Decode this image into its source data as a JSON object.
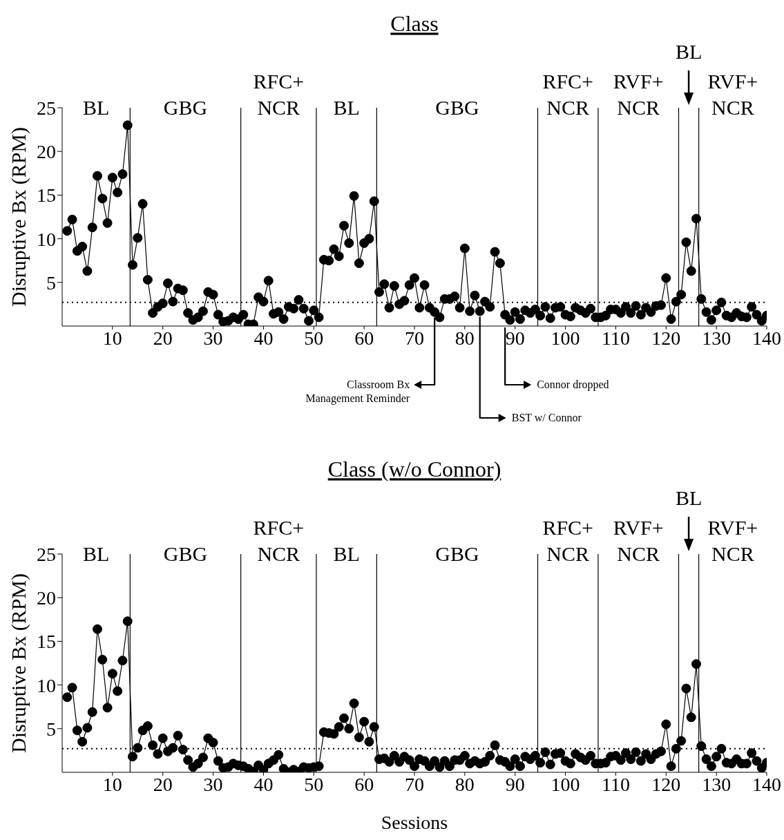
{
  "chart_data": [
    {
      "type": "line",
      "title": "Class",
      "ylabel": "Disruptive Bx (RPM)",
      "marker": "circle",
      "x": [
        1,
        2,
        3,
        4,
        5,
        6,
        7,
        8,
        9,
        10,
        11,
        12,
        13,
        14,
        15,
        16,
        17,
        18,
        19,
        20,
        21,
        22,
        23,
        24,
        25,
        26,
        27,
        28,
        29,
        30,
        31,
        32,
        33,
        34,
        35,
        36,
        37,
        38,
        39,
        40,
        41,
        42,
        43,
        44,
        45,
        46,
        47,
        48,
        49,
        50,
        51,
        52,
        53,
        54,
        55,
        56,
        57,
        58,
        59,
        60,
        61,
        62,
        63,
        64,
        65,
        66,
        67,
        68,
        69,
        70,
        71,
        72,
        73,
        74,
        75,
        76,
        77,
        78,
        79,
        80,
        81,
        82,
        83,
        84,
        85,
        86,
        87,
        88,
        89,
        90,
        91,
        92,
        93,
        94,
        95,
        96,
        97,
        98,
        99,
        100,
        101,
        102,
        103,
        104,
        105,
        106,
        107,
        108,
        109,
        110,
        111,
        112,
        113,
        114,
        115,
        116,
        117,
        118,
        119,
        120,
        121,
        122,
        123,
        124,
        125,
        126,
        127,
        128,
        129,
        130,
        131,
        132,
        133,
        134,
        135,
        136,
        137,
        138,
        139,
        140
      ],
      "series": [
        {
          "color": "#000000",
          "values": [
            10.9,
            12.2,
            8.6,
            9.1,
            6.3,
            11.3,
            17.2,
            14.6,
            11.8,
            17.0,
            15.3,
            17.4,
            23.0,
            7.0,
            10.1,
            14.0,
            5.3,
            1.5,
            2.2,
            2.6,
            4.9,
            2.8,
            4.3,
            4.1,
            1.5,
            0.7,
            1.0,
            1.7,
            3.9,
            3.6,
            1.3,
            0.5,
            0.6,
            1.0,
            0.8,
            1.3,
            0.2,
            0.2,
            3.3,
            2.8,
            5.2,
            1.4,
            1.6,
            0.8,
            2.2,
            2.0,
            3.0,
            2.0,
            0.6,
            1.8,
            1.0,
            7.6,
            7.5,
            8.8,
            8.0,
            11.5,
            9.5,
            14.9,
            7.2,
            9.5,
            10.0,
            14.3,
            3.9,
            4.8,
            2.1,
            4.6,
            2.5,
            2.9,
            4.7,
            5.5,
            2.1,
            4.7,
            2.1,
            1.6,
            1.0,
            3.1,
            3.1,
            3.4,
            2.1,
            8.9,
            1.7,
            3.5,
            1.7,
            2.8,
            2.2,
            8.5,
            7.2,
            1.3,
            0.7,
            1.6,
            0.8,
            1.8,
            1.5,
            1.9,
            1.2,
            2.2,
            0.9,
            2.1,
            2.2,
            1.3,
            1.1,
            2.1,
            1.8,
            1.5,
            2.0,
            1.0,
            1.0,
            1.2,
            1.9,
            1.9,
            1.5,
            2.2,
            1.5,
            2.3,
            1.3,
            2.1,
            1.6,
            2.3,
            2.4,
            5.5,
            0.8,
            2.8,
            3.6,
            9.6,
            6.3,
            12.3,
            3.1,
            1.6,
            0.7,
            1.8,
            2.7,
            1.2,
            1.0,
            1.5,
            1.1,
            1.0,
            2.2,
            1.3,
            0.6,
            1.2
          ]
        }
      ],
      "xlim": [
        0,
        140
      ],
      "xticks": [
        10,
        20,
        30,
        40,
        50,
        60,
        70,
        80,
        90,
        100,
        110,
        120,
        130,
        140
      ],
      "ylim": [
        0,
        25
      ],
      "yticks": [
        5,
        10,
        15,
        20,
        25
      ],
      "ref_lines": [
        {
          "axis": "x",
          "value": 13.5,
          "color": "#000000"
        },
        {
          "axis": "x",
          "value": 35.5,
          "color": "#000000"
        },
        {
          "axis": "x",
          "value": 50.5,
          "color": "#000000"
        },
        {
          "axis": "x",
          "value": 62.5,
          "color": "#000000"
        },
        {
          "axis": "x",
          "value": 94.5,
          "color": "#000000"
        },
        {
          "axis": "x",
          "value": 106.5,
          "color": "#000000"
        },
        {
          "axis": "x",
          "value": 122.5,
          "color": "#000000"
        },
        {
          "axis": "x",
          "value": 126.5,
          "color": "#000000"
        },
        {
          "axis": "y",
          "value": 2.7,
          "color": "#000000",
          "line_style": "dotted"
        }
      ],
      "annotations": [
        "BL",
        "GBG",
        "RFC+\nNCR",
        "BL",
        "GBG",
        "RFC+\nNCR",
        "RVF+\nNCR",
        "BL",
        "RVF+\nNCR",
        {
          "text": "Classroom Bx\nManagement Reminder",
          "x": 74,
          "y": 1.6
        },
        {
          "text": "BST w/ Connor",
          "x": 83,
          "y": 1.7
        },
        {
          "text": "Connor dropped",
          "x": 88,
          "y": 0
        }
      ]
    },
    {
      "type": "line",
      "title": "Class (w/o Connor)",
      "xlabel": "Sessions",
      "ylabel": "Disruptive Bx (RPM)",
      "marker": "circle",
      "x": [
        1,
        2,
        3,
        4,
        5,
        6,
        7,
        8,
        9,
        10,
        11,
        12,
        13,
        14,
        15,
        16,
        17,
        18,
        19,
        20,
        21,
        22,
        23,
        24,
        25,
        26,
        27,
        28,
        29,
        30,
        31,
        32,
        33,
        34,
        35,
        36,
        37,
        38,
        39,
        40,
        41,
        42,
        43,
        44,
        45,
        46,
        47,
        48,
        49,
        50,
        51,
        52,
        53,
        54,
        55,
        56,
        57,
        58,
        59,
        60,
        61,
        62,
        63,
        64,
        65,
        66,
        67,
        68,
        69,
        70,
        71,
        72,
        73,
        74,
        75,
        76,
        77,
        78,
        79,
        80,
        81,
        82,
        83,
        84,
        85,
        86,
        87,
        88,
        89,
        90,
        91,
        92,
        93,
        94,
        95,
        96,
        97,
        98,
        99,
        100,
        101,
        102,
        103,
        104,
        105,
        106,
        107,
        108,
        109,
        110,
        111,
        112,
        113,
        114,
        115,
        116,
        117,
        118,
        119,
        120,
        121,
        122,
        123,
        124,
        125,
        126,
        127,
        128,
        129,
        130,
        131,
        132,
        133,
        134,
        135,
        136,
        137,
        138,
        139,
        140
      ],
      "series": [
        {
          "color": "#000000",
          "values": [
            8.6,
            9.7,
            4.8,
            3.5,
            5.1,
            6.9,
            16.4,
            12.9,
            7.4,
            11.3,
            9.3,
            12.8,
            17.3,
            1.8,
            2.8,
            4.8,
            5.3,
            3.1,
            2.1,
            3.9,
            2.4,
            2.8,
            4.2,
            2.6,
            1.4,
            0.6,
            1.0,
            1.7,
            3.9,
            3.4,
            1.3,
            0.5,
            0.6,
            1.0,
            0.8,
            0.7,
            0.4,
            0.1,
            0.8,
            0.3,
            1.0,
            1.4,
            2.0,
            0.4,
            0.0,
            0.3,
            0.1,
            0.6,
            0.5,
            0.6,
            0.7,
            4.6,
            4.5,
            4.4,
            5.2,
            6.2,
            5.0,
            7.9,
            4.0,
            5.8,
            3.5,
            5.2,
            1.5,
            1.6,
            1.2,
            1.9,
            1.2,
            1.8,
            1.4,
            0.7,
            1.5,
            1.3,
            0.7,
            1.3,
            0.6,
            1.3,
            0.7,
            1.4,
            1.4,
            1.9,
            1.0,
            1.3,
            1.0,
            1.2,
            1.9,
            3.1,
            1.4,
            1.2,
            0.7,
            1.5,
            0.7,
            1.8,
            1.5,
            1.9,
            1.1,
            2.3,
            0.9,
            2.1,
            2.2,
            1.3,
            1.0,
            2.1,
            1.7,
            1.4,
            1.9,
            1.0,
            1.0,
            1.1,
            1.8,
            1.9,
            1.4,
            2.2,
            1.5,
            2.3,
            1.3,
            2.1,
            1.5,
            2.1,
            2.4,
            5.5,
            0.7,
            2.7,
            3.6,
            9.6,
            6.3,
            12.4,
            3.0,
            1.5,
            0.7,
            1.8,
            2.7,
            1.1,
            1.0,
            1.5,
            1.0,
            1.0,
            2.2,
            1.3,
            0.5,
            1.1
          ]
        }
      ],
      "xlim": [
        0,
        140
      ],
      "xticks": [
        10,
        20,
        30,
        40,
        50,
        60,
        70,
        80,
        90,
        100,
        110,
        120,
        130,
        140
      ],
      "ylim": [
        0,
        25
      ],
      "yticks": [
        5,
        10,
        15,
        20,
        25
      ],
      "ref_lines": [
        {
          "axis": "x",
          "value": 13.5,
          "color": "#000000"
        },
        {
          "axis": "x",
          "value": 35.5,
          "color": "#000000"
        },
        {
          "axis": "x",
          "value": 50.5,
          "color": "#000000"
        },
        {
          "axis": "x",
          "value": 62.5,
          "color": "#000000"
        },
        {
          "axis": "x",
          "value": 94.5,
          "color": "#000000"
        },
        {
          "axis": "x",
          "value": 106.5,
          "color": "#000000"
        },
        {
          "axis": "x",
          "value": 122.5,
          "color": "#000000"
        },
        {
          "axis": "x",
          "value": 126.5,
          "color": "#000000"
        },
        {
          "axis": "y",
          "value": 2.7,
          "color": "#000000",
          "line_style": "dotted"
        }
      ],
      "annotations": [
        "BL",
        "GBG",
        "RFC+\nNCR",
        "BL",
        "GBG",
        "RFC+\nNCR",
        "RVF+\nNCR",
        "BL",
        "RVF+\nNCR"
      ]
    }
  ]
}
